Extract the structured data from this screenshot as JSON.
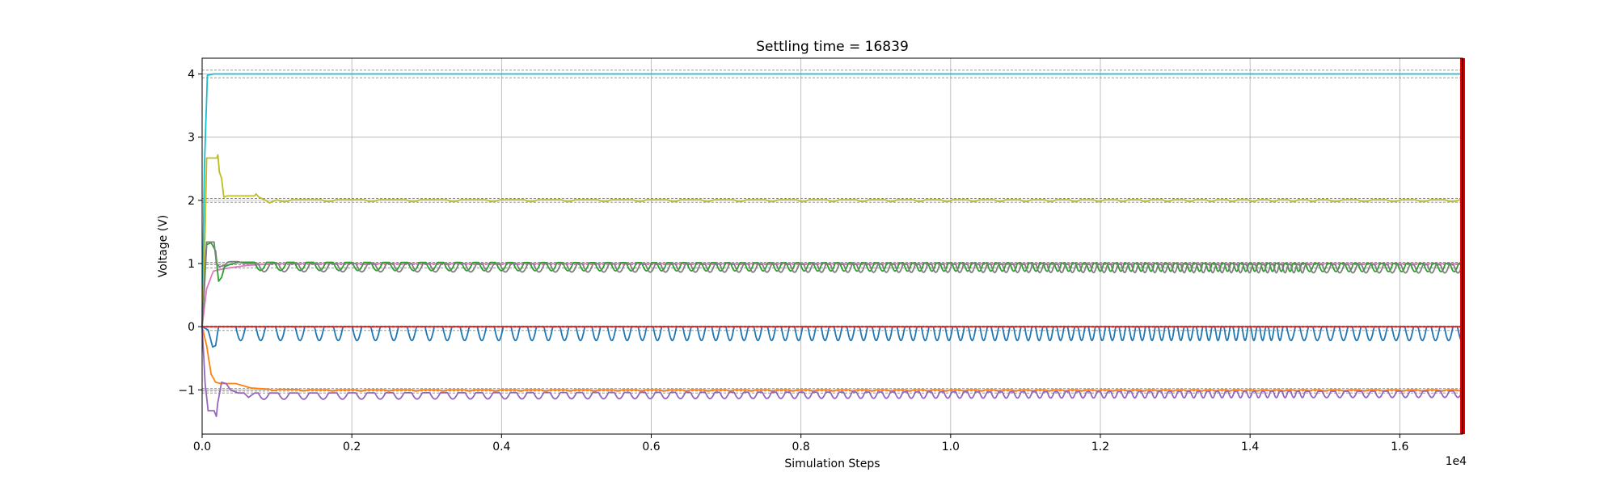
{
  "chart_data": {
    "type": "line",
    "title": "Settling time = 16839",
    "xlabel": "Simulation Steps",
    "ylabel": "Voltage (V)",
    "x_offset_label": "1e4",
    "xlim": [
      0,
      16839
    ],
    "ylim": [
      -1.7,
      4.25
    ],
    "grid": true,
    "legend": "none",
    "x_ticks": [
      0,
      2000,
      4000,
      6000,
      8000,
      10000,
      12000,
      14000,
      16000
    ],
    "x_tick_labels": [
      "0.0",
      "0.2",
      "0.4",
      "0.6",
      "0.8",
      "1.0",
      "1.2",
      "1.4",
      "1.6"
    ],
    "y_ticks": [
      -1,
      0,
      1,
      2,
      3,
      4
    ],
    "y_tick_labels": [
      "−1",
      "0",
      "1",
      "2",
      "3",
      "4"
    ],
    "settling_marker": {
      "x": 16839,
      "color": "#dd0000"
    },
    "reference_lines": [
      {
        "y": 4.06,
        "color": "#888888"
      },
      {
        "y": 3.94,
        "color": "#888888"
      },
      {
        "y": 2.03,
        "color": "#888888"
      },
      {
        "y": 1.97,
        "color": "#888888"
      },
      {
        "y": 1.02,
        "color": "#888888"
      },
      {
        "y": 0.98,
        "color": "#888888"
      },
      {
        "y": 0.93,
        "color": "#888888"
      },
      {
        "y": 0.01,
        "color": "#888888"
      },
      {
        "y": -0.01,
        "color": "#888888"
      },
      {
        "y": -0.06,
        "color": "#888888"
      },
      {
        "y": -0.98,
        "color": "#888888"
      },
      {
        "y": -1.02,
        "color": "#888888"
      },
      {
        "y": -1.05,
        "color": "#888888"
      }
    ],
    "series": [
      {
        "color": "#17becf",
        "kind": "steady",
        "x": [
          0,
          30,
          70,
          150,
          16839
        ],
        "y": [
          0.0,
          2.5,
          3.98,
          4.0,
          4.0
        ]
      },
      {
        "color": "#bcbd22",
        "kind": "dip",
        "x": [
          0,
          40,
          60,
          200,
          210,
          230,
          260,
          290,
          330,
          700,
          720,
          760,
          850,
          900,
          1000,
          16839
        ],
        "y": [
          0.0,
          1.5,
          2.67,
          2.67,
          2.72,
          2.45,
          2.35,
          2.05,
          2.07,
          2.07,
          2.1,
          2.05,
          2.0,
          1.96,
          2.01,
          2.01
        ],
        "dip_start": 1000,
        "dip_spacing": 600,
        "dip_depth": 0.03,
        "dip_width": 200
      },
      {
        "color": "#e377c2",
        "kind": "steady",
        "x": [
          0,
          60,
          150,
          300,
          600,
          1000,
          16839
        ],
        "y": [
          0.0,
          0.6,
          0.88,
          0.92,
          0.97,
          1.0,
          1.0
        ]
      },
      {
        "color": "#2ca02c",
        "kind": "dip",
        "x": [
          0,
          30,
          60,
          120,
          180,
          220,
          260,
          300,
          360,
          420,
          480,
          560,
          16839
        ],
        "y": [
          0.0,
          0.6,
          1.3,
          1.33,
          1.2,
          0.72,
          0.78,
          0.95,
          0.98,
          1.0,
          1.02,
          1.02,
          1.0
        ],
        "dip_start": 700,
        "dip_spacing": 270,
        "dip_depth": 0.13,
        "dip_width": 160
      },
      {
        "color": "#7f7f7f",
        "kind": "dip",
        "x": [
          0,
          30,
          60,
          160,
          190,
          230,
          300,
          340,
          380,
          480,
          560,
          16839
        ],
        "y": [
          0.0,
          0.7,
          1.34,
          1.34,
          1.0,
          0.95,
          0.97,
          1.02,
          1.03,
          1.03,
          1.0,
          0.98
        ],
        "dip_start": 750,
        "dip_spacing": 270,
        "dip_depth": 0.13,
        "dip_width": 160
      },
      {
        "color": "#1f77b4",
        "kind": "dip",
        "x": [
          0,
          80,
          140,
          180,
          220,
          260,
          300,
          16839
        ],
        "y": [
          0.0,
          -0.05,
          -0.32,
          -0.3,
          0.0,
          0.0,
          0.0,
          0.0
        ],
        "dip_start": 450,
        "dip_spacing": 270,
        "dip_depth": 0.22,
        "dip_width": 130
      },
      {
        "color": "#d62728",
        "kind": "steady",
        "x": [
          0,
          16839
        ],
        "y": [
          0.0,
          0.0
        ]
      },
      {
        "color": "#ff7f0e",
        "kind": "steady",
        "x": [
          0,
          60,
          120,
          180,
          250,
          450,
          650,
          900,
          1500,
          16839
        ],
        "y": [
          0.0,
          -0.3,
          -0.75,
          -0.88,
          -0.9,
          -0.9,
          -0.97,
          -0.99,
          -1.0,
          -1.0
        ],
        "dip_start": 900,
        "dip_spacing": 400,
        "dip_depth": 0.02,
        "dip_width": 120
      },
      {
        "color": "#9467bd",
        "kind": "dip",
        "x": [
          0,
          40,
          80,
          160,
          190,
          210,
          260,
          320,
          380,
          480,
          560,
          620,
          700,
          16839
        ],
        "y": [
          0.0,
          -0.9,
          -1.33,
          -1.33,
          -1.42,
          -1.2,
          -0.88,
          -0.9,
          -1.0,
          -1.05,
          -1.05,
          -1.12,
          -1.05,
          -1.02
        ],
        "dip_start": 750,
        "dip_spacing": 270,
        "dip_depth": 0.1,
        "dip_width": 150
      }
    ]
  }
}
